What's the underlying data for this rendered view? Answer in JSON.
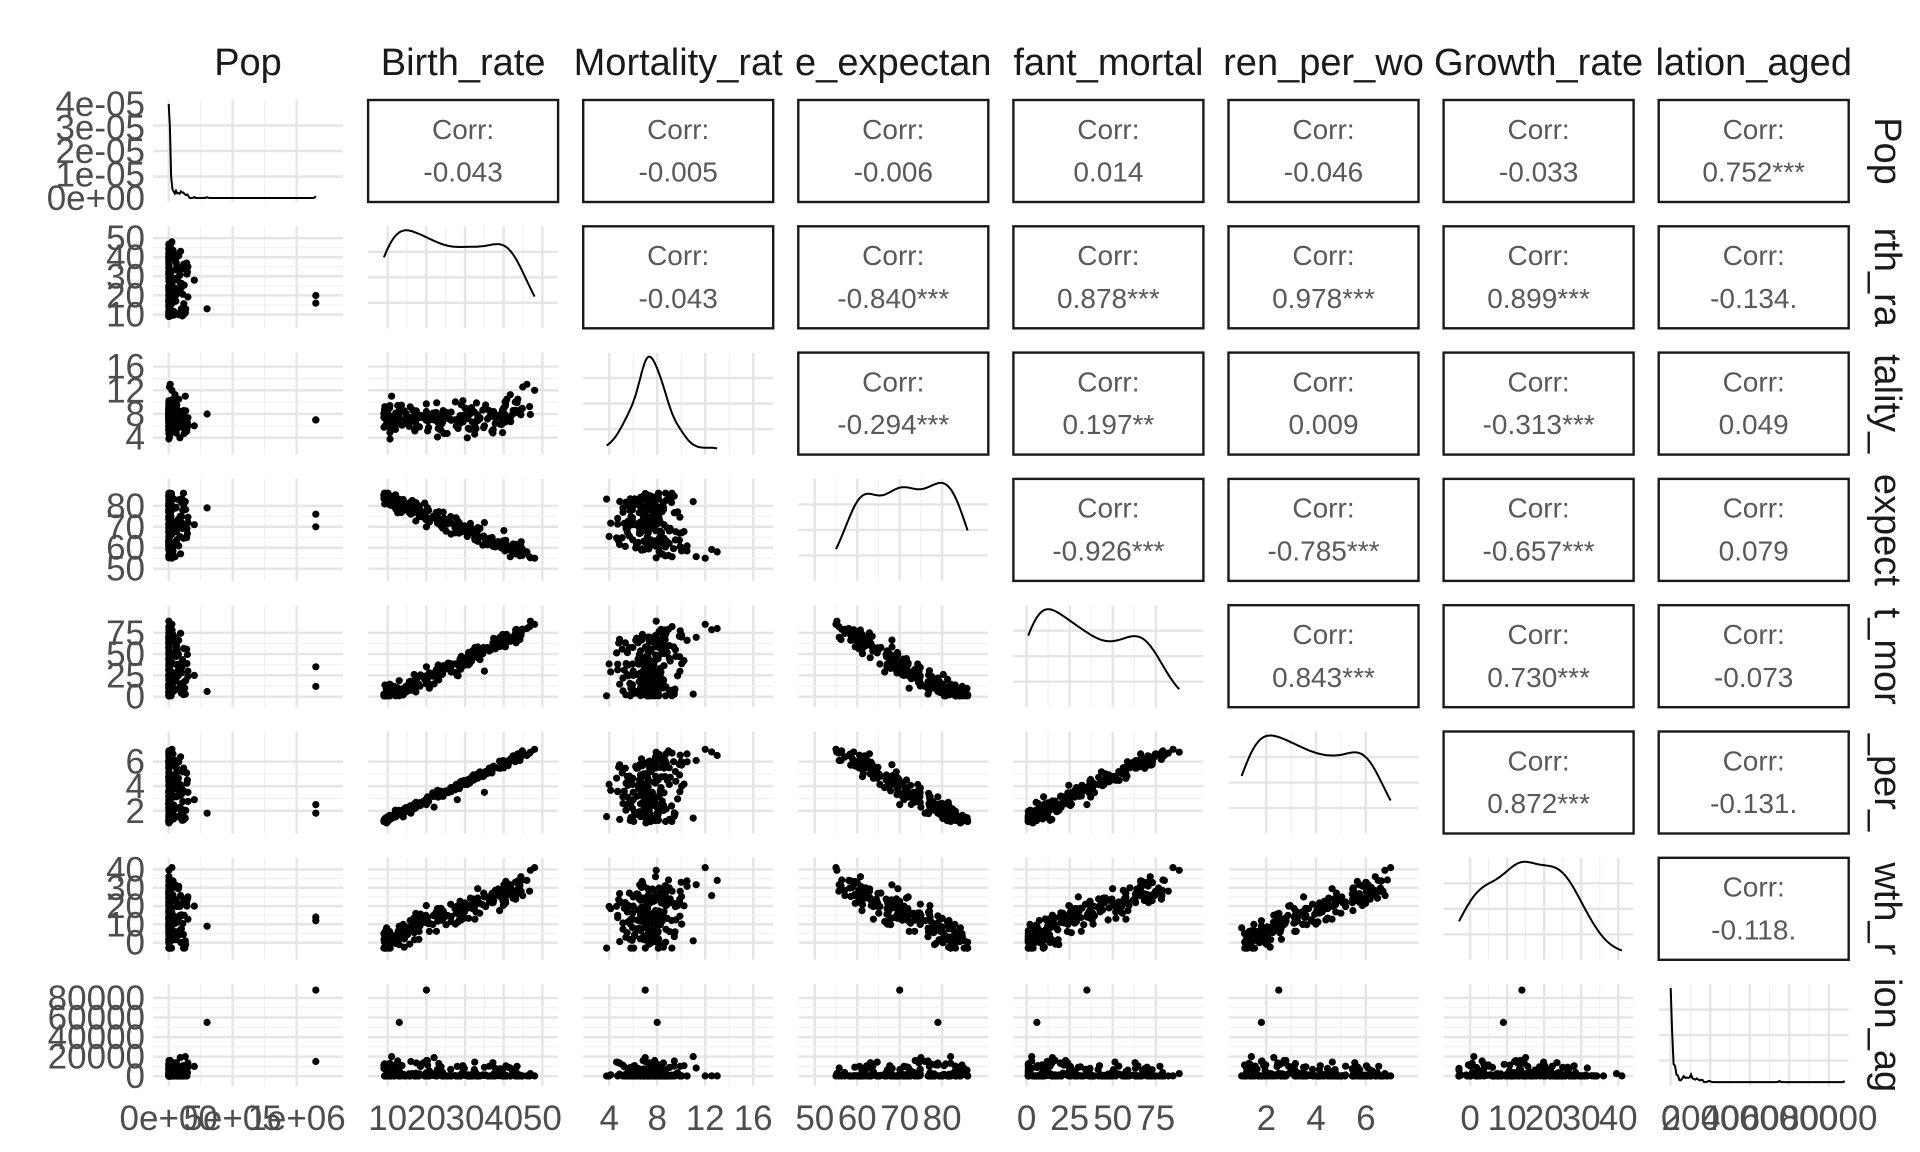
{
  "chart_data": {
    "type": "scatter-matrix",
    "variables": [
      "Pop",
      "Birth_rate",
      "Mortality_rate",
      "Life_expectancy",
      "Infant_mortality",
      "Children_per_woman",
      "Growth_rate",
      "Population_aged"
    ],
    "top_labels": [
      "Pop",
      "Birth_rate",
      "Mortality_rat",
      "e_expectan",
      "fant_mortal",
      "ren_per_wo",
      "Growth_rate",
      "lation_aged"
    ],
    "right_labels": [
      "Pop",
      "rth_ra",
      "tality_",
      "expect",
      "t_mor",
      "_per_",
      "wth_r",
      "ion_ag"
    ],
    "left_ticks": [
      [
        "4e-05",
        "3e-05",
        "2e-05",
        "1e-05",
        "0e+00"
      ],
      [
        "50",
        "40",
        "30",
        "20",
        "10"
      ],
      [
        "16",
        "12",
        "8",
        "4"
      ],
      [
        "80",
        "70",
        "60",
        "50"
      ],
      [
        "75",
        "50",
        "25",
        "0"
      ],
      [
        "6",
        "4",
        "2"
      ],
      [
        "40",
        "30",
        "20",
        "10",
        "0"
      ],
      [
        "80000",
        "60000",
        "40000",
        "20000",
        "0"
      ]
    ],
    "bottom_ticks": [
      [
        "0e+00",
        "5e+05",
        "1e+06"
      ],
      [
        "10",
        "20",
        "30",
        "40",
        "50"
      ],
      [
        "4",
        "8",
        "12",
        "16"
      ],
      [
        "50",
        "60",
        "70",
        "80"
      ],
      [
        "0",
        "25",
        "50",
        "75"
      ],
      [
        "2",
        "4",
        "6"
      ],
      [
        "0",
        "10",
        "20",
        "30",
        "40"
      ],
      [
        "0",
        "20000",
        "40000",
        "60000",
        "80000"
      ]
    ],
    "ranges": [
      [
        -60000,
        1300000
      ],
      [
        7,
        52
      ],
      [
        2.5,
        17
      ],
      [
        48,
        89
      ],
      [
        -3,
        98
      ],
      [
        0.8,
        7.8
      ],
      [
        -5,
        42
      ],
      [
        -2000,
        86000
      ]
    ],
    "corr_label": "Corr:",
    "correlations": [
      {
        "row": 1,
        "col": 2,
        "value": "-0.043"
      },
      {
        "row": 1,
        "col": 3,
        "value": "-0.005"
      },
      {
        "row": 1,
        "col": 4,
        "value": "-0.006"
      },
      {
        "row": 1,
        "col": 5,
        "value": "0.014"
      },
      {
        "row": 1,
        "col": 6,
        "value": "-0.046"
      },
      {
        "row": 1,
        "col": 7,
        "value": "-0.033"
      },
      {
        "row": 1,
        "col": 8,
        "value": "0.752***"
      },
      {
        "row": 2,
        "col": 3,
        "value": "-0.043"
      },
      {
        "row": 2,
        "col": 4,
        "value": "-0.840***"
      },
      {
        "row": 2,
        "col": 5,
        "value": "0.878***"
      },
      {
        "row": 2,
        "col": 6,
        "value": "0.978***"
      },
      {
        "row": 2,
        "col": 7,
        "value": "0.899***"
      },
      {
        "row": 2,
        "col": 8,
        "value": "-0.134."
      },
      {
        "row": 3,
        "col": 4,
        "value": "-0.294***"
      },
      {
        "row": 3,
        "col": 5,
        "value": "0.197**"
      },
      {
        "row": 3,
        "col": 6,
        "value": "0.009"
      },
      {
        "row": 3,
        "col": 7,
        "value": "-0.313***"
      },
      {
        "row": 3,
        "col": 8,
        "value": "0.049"
      },
      {
        "row": 4,
        "col": 5,
        "value": "-0.926***"
      },
      {
        "row": 4,
        "col": 6,
        "value": "-0.785***"
      },
      {
        "row": 4,
        "col": 7,
        "value": "-0.657***"
      },
      {
        "row": 4,
        "col": 8,
        "value": "0.079"
      },
      {
        "row": 5,
        "col": 6,
        "value": "0.843***"
      },
      {
        "row": 5,
        "col": 7,
        "value": "0.730***"
      },
      {
        "row": 5,
        "col": 8,
        "value": "-0.073"
      },
      {
        "row": 6,
        "col": 7,
        "value": "0.872***"
      },
      {
        "row": 6,
        "col": 8,
        "value": "-0.131."
      },
      {
        "row": 7,
        "col": 8,
        "value": "-0.118."
      }
    ],
    "observations": [
      [
        25000,
        48,
        12,
        55,
        85,
        7.0,
        41,
        300
      ],
      [
        12000,
        46,
        13,
        58,
        80,
        6.5,
        34,
        200
      ],
      [
        1150000,
        20,
        7,
        70,
        35,
        2.5,
        14,
        88000
      ],
      [
        1150000,
        16,
        7,
        76,
        12,
        1.8,
        12,
        15000
      ],
      [
        300000,
        13,
        8,
        79,
        6,
        1.8,
        9,
        55000
      ],
      [
        60000,
        40,
        9,
        62,
        60,
        5.5,
        30,
        500
      ],
      [
        30000,
        43,
        10,
        60,
        70,
        6.0,
        33,
        400
      ],
      [
        150000,
        35,
        6,
        72,
        30,
        3.5,
        25,
        9000
      ],
      [
        200000,
        28,
        6,
        71,
        25,
        2.9,
        20,
        10000
      ],
      [
        90000,
        22,
        7,
        75,
        15,
        2.3,
        15,
        19000
      ],
      [
        130000,
        11,
        11,
        82,
        3,
        1.4,
        1,
        20000
      ],
      [
        10000,
        14,
        7,
        83,
        2,
        1.5,
        10,
        2000
      ]
    ]
  }
}
